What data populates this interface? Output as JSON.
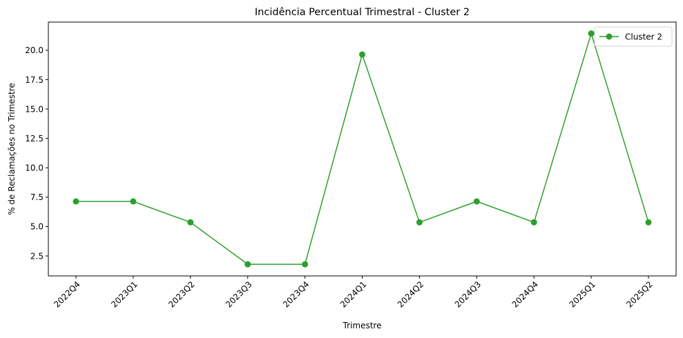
{
  "chart_data": {
    "type": "line",
    "title": "Incidência Percentual Trimestral - Cluster 2",
    "xlabel": "Trimestre",
    "ylabel": "% de Reclamações no Trimestre",
    "categories": [
      "2022Q4",
      "2023Q1",
      "2023Q2",
      "2023Q3",
      "2023Q4",
      "2024Q1",
      "2024Q2",
      "2024Q3",
      "2024Q4",
      "2025Q1",
      "2025Q2"
    ],
    "series": [
      {
        "name": "Cluster 2",
        "color": "#2ca02c",
        "marker": "circle",
        "values": [
          7.14,
          7.14,
          5.36,
          1.79,
          1.79,
          19.64,
          5.36,
          7.14,
          5.36,
          21.43,
          5.36
        ]
      }
    ],
    "ylim": [
      0.8,
      22.4
    ],
    "yticks": [
      "2.5",
      "5.0",
      "7.5",
      "10.0",
      "12.5",
      "15.0",
      "17.5",
      "20.0"
    ],
    "legend": "top-right",
    "grid": false
  }
}
